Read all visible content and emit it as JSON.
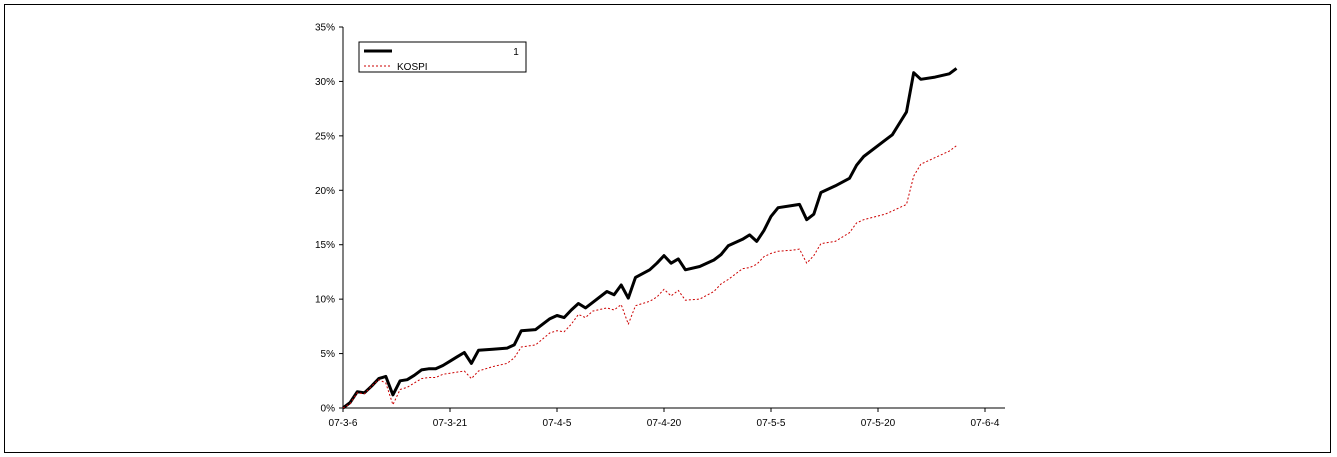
{
  "chart_data": {
    "type": "line",
    "title": "",
    "xlabel": "",
    "ylabel": "",
    "ylim": [
      0,
      35
    ],
    "y_ticks": [
      0,
      5,
      10,
      15,
      20,
      25,
      30,
      35
    ],
    "y_tick_labels": [
      "0%",
      "5%",
      "10%",
      "15%",
      "20%",
      "25%",
      "30%",
      "35%"
    ],
    "x_tick_labels": [
      "07-3-6",
      "07-3-21",
      "07-4-5",
      "07-4-20",
      "07-5-5",
      "07-5-20",
      "07-6-4"
    ],
    "x_tick_positions": [
      0,
      15,
      30,
      45,
      60,
      75,
      90
    ],
    "grid": false,
    "legend_position": "top-left",
    "series": [
      {
        "name": "1",
        "color": "#000000",
        "style": "solid",
        "points": [
          [
            0,
            0.0
          ],
          [
            1,
            0.5
          ],
          [
            2,
            1.5
          ],
          [
            3,
            1.4
          ],
          [
            4,
            2.0
          ],
          [
            5,
            2.7
          ],
          [
            6,
            2.9
          ],
          [
            7,
            1.2
          ],
          [
            8,
            2.5
          ],
          [
            9,
            2.6
          ],
          [
            10,
            3.0
          ],
          [
            11,
            3.5
          ],
          [
            12,
            3.6
          ],
          [
            13,
            3.6
          ],
          [
            14,
            3.9
          ],
          [
            15,
            4.3
          ],
          [
            16,
            4.7
          ],
          [
            17,
            5.1
          ],
          [
            18,
            4.1
          ],
          [
            19,
            5.3
          ],
          [
            21,
            5.4
          ],
          [
            23,
            5.5
          ],
          [
            24,
            5.8
          ],
          [
            25,
            7.1
          ],
          [
            27,
            7.2
          ],
          [
            29,
            8.2
          ],
          [
            30,
            8.5
          ],
          [
            31,
            8.3
          ],
          [
            32,
            9.0
          ],
          [
            33,
            9.6
          ],
          [
            34,
            9.2
          ],
          [
            35,
            9.7
          ],
          [
            37,
            10.7
          ],
          [
            38,
            10.4
          ],
          [
            39,
            11.3
          ],
          [
            40,
            10.1
          ],
          [
            41,
            12.0
          ],
          [
            43,
            12.7
          ],
          [
            44,
            13.3
          ],
          [
            45,
            14.0
          ],
          [
            46,
            13.3
          ],
          [
            47,
            13.7
          ],
          [
            48,
            12.7
          ],
          [
            50,
            13.0
          ],
          [
            52,
            13.6
          ],
          [
            53,
            14.1
          ],
          [
            54,
            14.9
          ],
          [
            56,
            15.5
          ],
          [
            57,
            15.9
          ],
          [
            58,
            15.3
          ],
          [
            59,
            16.3
          ],
          [
            60,
            17.6
          ],
          [
            61,
            18.4
          ],
          [
            63,
            18.6
          ],
          [
            64,
            18.7
          ],
          [
            65,
            17.3
          ],
          [
            66,
            17.8
          ],
          [
            67,
            19.8
          ],
          [
            69,
            20.4
          ],
          [
            71,
            21.1
          ],
          [
            72,
            22.3
          ],
          [
            73,
            23.1
          ],
          [
            76,
            24.6
          ],
          [
            77,
            25.1
          ],
          [
            79,
            27.2
          ],
          [
            80,
            30.8
          ],
          [
            81,
            30.2
          ],
          [
            83,
            30.4
          ],
          [
            85,
            30.7
          ],
          [
            86,
            31.2
          ]
        ]
      },
      {
        "name": "KOSPI",
        "color": "#cc0000",
        "style": "dotted",
        "points": [
          [
            0,
            0.0
          ],
          [
            1,
            0.4
          ],
          [
            2,
            1.4
          ],
          [
            3,
            1.3
          ],
          [
            4,
            2.0
          ],
          [
            5,
            2.6
          ],
          [
            6,
            2.3
          ],
          [
            7,
            0.3
          ],
          [
            8,
            1.7
          ],
          [
            9,
            1.9
          ],
          [
            10,
            2.3
          ],
          [
            11,
            2.7
          ],
          [
            12,
            2.8
          ],
          [
            13,
            2.8
          ],
          [
            14,
            3.1
          ],
          [
            15,
            3.2
          ],
          [
            16,
            3.3
          ],
          [
            17,
            3.4
          ],
          [
            18,
            2.7
          ],
          [
            19,
            3.4
          ],
          [
            21,
            3.8
          ],
          [
            23,
            4.1
          ],
          [
            24,
            4.6
          ],
          [
            25,
            5.6
          ],
          [
            27,
            5.8
          ],
          [
            29,
            6.9
          ],
          [
            30,
            7.1
          ],
          [
            31,
            7.0
          ],
          [
            32,
            7.7
          ],
          [
            33,
            8.6
          ],
          [
            34,
            8.3
          ],
          [
            35,
            8.9
          ],
          [
            37,
            9.2
          ],
          [
            38,
            9.0
          ],
          [
            39,
            9.5
          ],
          [
            40,
            7.7
          ],
          [
            41,
            9.4
          ],
          [
            43,
            9.8
          ],
          [
            44,
            10.2
          ],
          [
            45,
            10.9
          ],
          [
            46,
            10.3
          ],
          [
            47,
            10.8
          ],
          [
            48,
            9.9
          ],
          [
            50,
            10.0
          ],
          [
            52,
            10.7
          ],
          [
            53,
            11.4
          ],
          [
            54,
            11.8
          ],
          [
            56,
            12.8
          ],
          [
            57,
            12.9
          ],
          [
            58,
            13.2
          ],
          [
            59,
            13.9
          ],
          [
            60,
            14.2
          ],
          [
            61,
            14.4
          ],
          [
            63,
            14.5
          ],
          [
            64,
            14.6
          ],
          [
            65,
            13.3
          ],
          [
            66,
            14.0
          ],
          [
            67,
            15.1
          ],
          [
            69,
            15.3
          ],
          [
            71,
            16.1
          ],
          [
            72,
            17.0
          ],
          [
            73,
            17.3
          ],
          [
            76,
            17.8
          ],
          [
            77,
            18.1
          ],
          [
            79,
            18.7
          ],
          [
            80,
            21.3
          ],
          [
            81,
            22.4
          ],
          [
            83,
            23.0
          ],
          [
            85,
            23.6
          ],
          [
            86,
            24.1
          ]
        ]
      }
    ]
  }
}
